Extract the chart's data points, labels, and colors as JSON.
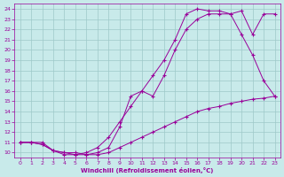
{
  "xlabel": "Windchill (Refroidissement éolien,°C)",
  "xlim": [
    -0.5,
    23.5
  ],
  "ylim": [
    9.5,
    24.5
  ],
  "xticks": [
    0,
    1,
    2,
    3,
    4,
    5,
    6,
    7,
    8,
    9,
    10,
    11,
    12,
    13,
    14,
    15,
    16,
    17,
    18,
    19,
    20,
    21,
    22,
    23
  ],
  "yticks": [
    10,
    11,
    12,
    13,
    14,
    15,
    16,
    17,
    18,
    19,
    20,
    21,
    22,
    23,
    24
  ],
  "line_color": "#990099",
  "bg_color": "#c8eaea",
  "grid_color": "#9ec8c8",
  "line1_x": [
    0,
    1,
    2,
    3,
    4,
    5,
    6,
    7,
    8,
    9,
    10,
    11,
    12,
    13,
    14,
    15,
    16,
    17,
    18,
    19,
    20,
    21,
    22,
    23
  ],
  "line1_y": [
    11,
    11,
    11,
    10.2,
    10.0,
    10.0,
    9.8,
    9.8,
    10.0,
    10.5,
    11.0,
    11.5,
    12.0,
    12.5,
    13.0,
    13.5,
    14.0,
    14.3,
    14.5,
    14.8,
    15.0,
    15.2,
    15.3,
    15.5
  ],
  "line2_x": [
    0,
    1,
    2,
    3,
    4,
    5,
    6,
    7,
    8,
    9,
    10,
    11,
    12,
    13,
    14,
    15,
    16,
    17,
    18,
    19,
    20,
    21,
    22,
    23
  ],
  "line2_y": [
    11,
    11,
    10.8,
    10.2,
    10.0,
    9.8,
    9.8,
    10.0,
    10.5,
    12.5,
    15.5,
    16.0,
    15.5,
    17.5,
    20.0,
    22.0,
    23.0,
    23.5,
    23.5,
    23.5,
    21.5,
    19.5,
    17.0,
    15.5
  ],
  "line3_x": [
    0,
    1,
    2,
    3,
    4,
    5,
    6,
    7,
    8,
    9,
    10,
    11,
    12,
    13,
    14,
    15,
    16,
    17,
    18,
    19,
    20,
    21,
    22,
    23
  ],
  "line3_y": [
    11,
    11,
    10.8,
    10.2,
    9.8,
    9.8,
    10.0,
    10.5,
    11.5,
    13.0,
    14.5,
    16.0,
    17.5,
    19.0,
    21.0,
    23.5,
    24.0,
    23.8,
    23.8,
    23.5,
    23.8,
    21.5,
    23.5,
    23.5
  ]
}
